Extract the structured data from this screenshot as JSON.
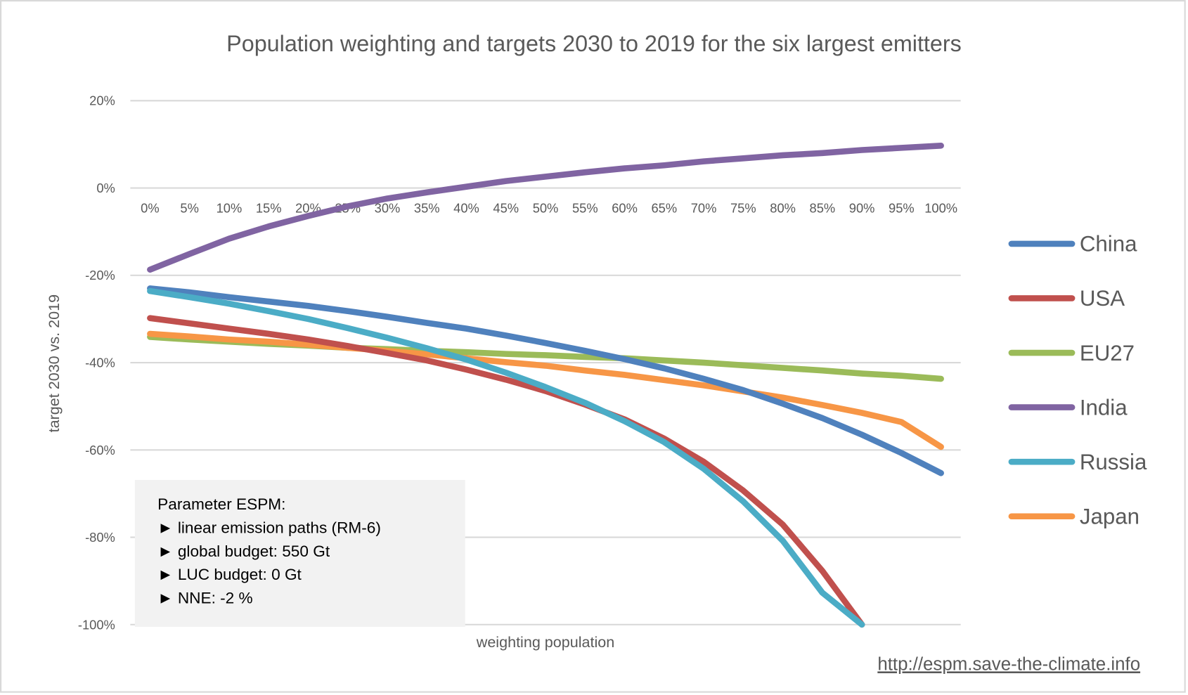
{
  "chart_data": {
    "type": "line",
    "title": "Population weighting and targets 2030 to 2019 for the six largest emitters",
    "xlabel": "weighting population",
    "ylabel": "target 2030 vs. 2019",
    "x": [
      "0%",
      "5%",
      "10%",
      "15%",
      "20%",
      "25%",
      "30%",
      "35%",
      "40%",
      "45%",
      "50%",
      "55%",
      "60%",
      "65%",
      "70%",
      "75%",
      "80%",
      "85%",
      "90%",
      "95%",
      "100%"
    ],
    "y_ticks": [
      "20%",
      "0%",
      "-20%",
      "-40%",
      "-60%",
      "-80%",
      "-100%"
    ],
    "y_tick_values": [
      20,
      0,
      -20,
      -40,
      -60,
      -80,
      -100
    ],
    "ylim": [
      -100,
      20
    ],
    "grid": true,
    "legend_position": "right",
    "series": [
      {
        "name": "China",
        "color": "#4F81BD",
        "values": [
          -23.0,
          -23.9,
          -25.0,
          -26.0,
          -27.0,
          -28.2,
          -29.5,
          -30.9,
          -32.2,
          -33.8,
          -35.5,
          -37.3,
          -39.2,
          -41.3,
          -43.7,
          -46.3,
          -49.4,
          -52.7,
          -56.5,
          -60.7,
          -65.3
        ]
      },
      {
        "name": "USA",
        "color": "#C0504D",
        "values": [
          -29.8,
          -31.0,
          -32.2,
          -33.4,
          -34.7,
          -36.2,
          -37.8,
          -39.5,
          -41.6,
          -43.9,
          -46.5,
          -49.6,
          -53.0,
          -57.4,
          -62.7,
          -69.3,
          -77.1,
          -87.7,
          -100,
          null,
          null
        ]
      },
      {
        "name": "EU27",
        "color": "#9BBB59",
        "values": [
          -34.1,
          -34.7,
          -35.2,
          -35.7,
          -36.1,
          -36.6,
          -36.9,
          -37.3,
          -37.6,
          -38.0,
          -38.3,
          -38.7,
          -39.0,
          -39.5,
          -40.0,
          -40.6,
          -41.2,
          -41.8,
          -42.5,
          -43.0,
          -43.7
        ]
      },
      {
        "name": "India",
        "color": "#8064A2",
        "values": [
          -18.7,
          -15.1,
          -11.6,
          -8.8,
          -6.4,
          -4.2,
          -2.4,
          -1.0,
          0.3,
          1.6,
          2.6,
          3.6,
          4.5,
          5.2,
          6.1,
          6.8,
          7.5,
          8.0,
          8.7,
          9.2,
          9.7
        ]
      },
      {
        "name": "Russia",
        "color": "#4BACC6",
        "values": [
          -23.6,
          -25.0,
          -26.5,
          -28.2,
          -30.0,
          -32.1,
          -34.3,
          -36.7,
          -39.3,
          -42.3,
          -45.6,
          -49.2,
          -53.4,
          -58.2,
          -64.3,
          -71.8,
          -80.8,
          -92.7,
          -100,
          null,
          null
        ]
      },
      {
        "name": "Japan",
        "color": "#F79646",
        "values": [
          -33.4,
          -34.0,
          -34.7,
          -35.2,
          -35.9,
          -36.6,
          -37.3,
          -38.1,
          -39.0,
          -39.9,
          -40.7,
          -41.8,
          -42.8,
          -44.0,
          -45.2,
          -46.6,
          -48.0,
          -49.7,
          -51.5,
          -53.6,
          -59.3
        ]
      }
    ],
    "annotation_box": {
      "title": "Parameter ESPM:",
      "bullet": "►",
      "lines": [
        "linear emission paths (RM-6)",
        "global budget: 550 Gt",
        "LUC budget: 0 Gt",
        "NNE: -2 %"
      ]
    },
    "source_link": "http://espm.save-the-climate.info"
  }
}
